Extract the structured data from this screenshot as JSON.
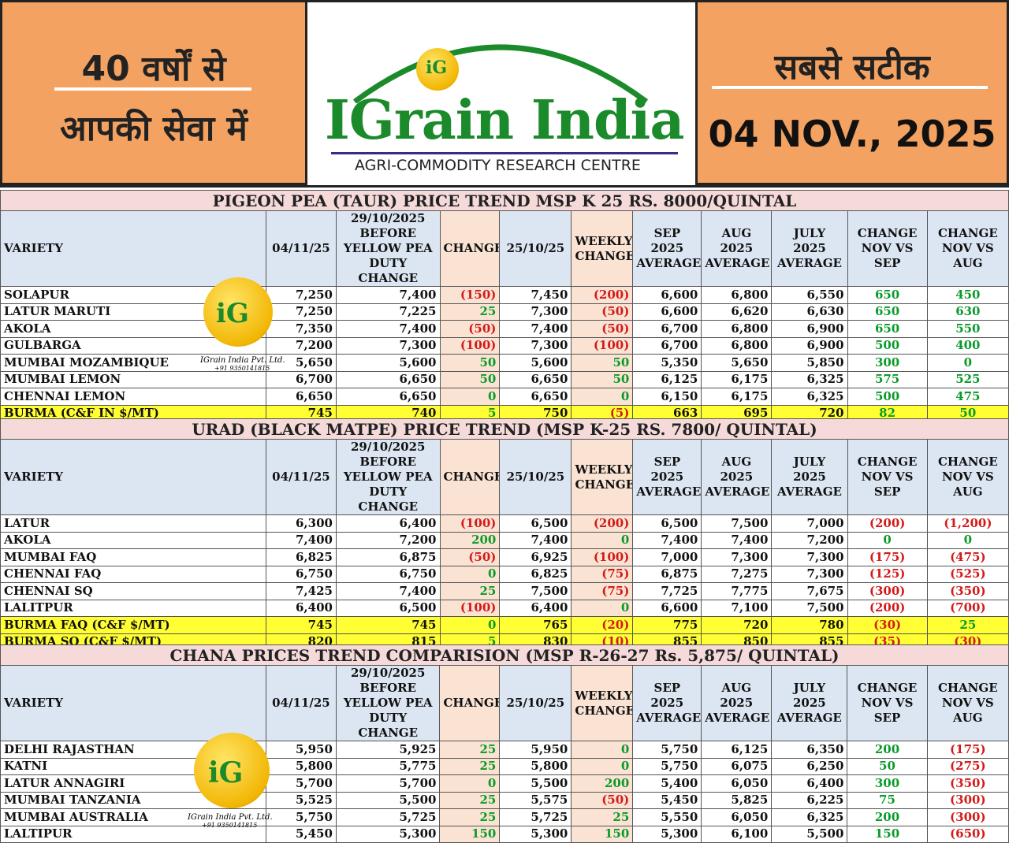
{
  "banner": {
    "left_line1": "40 वर्षों से",
    "left_line2": "आपकी सेवा में",
    "right_line1": "सबसे सटीक",
    "date": "04 NOV., 2025",
    "brand": "IGrain India",
    "tagline": "AGRI-COMMODITY RESEARCH CENTRE",
    "logo_text": "iG",
    "watermark_company": "IGrain India Pvt. Ltd.",
    "watermark_phone": "+91 9350141815"
  },
  "columns": [
    "VARIETY",
    "04/11/25",
    "29/10/2025 BEFORE YELLOW PEA DUTY CHANGE",
    "CHANGE",
    "25/10/25",
    "WEEKLY CHANGE",
    "SEP 2025 AVERAGE",
    "AUG 2025 AVERAGE",
    "JULY 2025 AVERAGE",
    "CHANGE NOV VS SEP",
    "CHANGE NOV VS AUG"
  ],
  "sections": [
    {
      "title": "PIGEON PEA (TAUR) PRICE TREND MSP K 25 RS. 8000/QUINTAL",
      "rows": [
        {
          "name": "SOLAPUR",
          "v": [
            "7,250",
            "7,400",
            "(150)",
            "7,450",
            "(200)",
            "6,600",
            "6,800",
            "6,550",
            "650",
            "450"
          ],
          "hl": false
        },
        {
          "name": "LATUR MARUTI",
          "v": [
            "7,250",
            "7,225",
            "25",
            "7,300",
            "(50)",
            "6,600",
            "6,620",
            "6,630",
            "650",
            "630"
          ],
          "hl": false
        },
        {
          "name": "AKOLA",
          "v": [
            "7,350",
            "7,400",
            "(50)",
            "7,400",
            "(50)",
            "6,700",
            "6,800",
            "6,900",
            "650",
            "550"
          ],
          "hl": false
        },
        {
          "name": "GULBARGA",
          "v": [
            "7,200",
            "7,300",
            "(100)",
            "7,300",
            "(100)",
            "6,700",
            "6,800",
            "6,900",
            "500",
            "400"
          ],
          "hl": false
        },
        {
          "name": "MUMBAI MOZAMBIQUE",
          "v": [
            "5,650",
            "5,600",
            "50",
            "5,600",
            "50",
            "5,350",
            "5,650",
            "5,850",
            "300",
            "0"
          ],
          "hl": false
        },
        {
          "name": "MUMBAI LEMON",
          "v": [
            "6,700",
            "6,650",
            "50",
            "6,650",
            "50",
            "6,125",
            "6,175",
            "6,325",
            "575",
            "525"
          ],
          "hl": false
        },
        {
          "name": "CHENNAI LEMON",
          "v": [
            "6,650",
            "6,650",
            "0",
            "6,650",
            "0",
            "6,150",
            "6,175",
            "6,325",
            "500",
            "475"
          ],
          "hl": false
        },
        {
          "name": "BURMA (C&F IN $/MT)",
          "v": [
            "745",
            "740",
            "5",
            "750",
            "(5)",
            "663",
            "695",
            "720",
            "82",
            "50"
          ],
          "hl": true
        }
      ]
    },
    {
      "title": "URAD (BLACK MATPE) PRICE TREND (MSP K-25 RS. 7800/ QUINTAL)",
      "rows": [
        {
          "name": "LATUR",
          "v": [
            "6,300",
            "6,400",
            "(100)",
            "6,500",
            "(200)",
            "6,500",
            "7,500",
            "7,000",
            "(200)",
            "(1,200)"
          ],
          "hl": false
        },
        {
          "name": "AKOLA",
          "v": [
            "7,400",
            "7,200",
            "200",
            "7,400",
            "0",
            "7,400",
            "7,400",
            "7,200",
            "0",
            "0"
          ],
          "hl": false
        },
        {
          "name": "MUMBAI FAQ",
          "v": [
            "6,825",
            "6,875",
            "(50)",
            "6,925",
            "(100)",
            "7,000",
            "7,300",
            "7,300",
            "(175)",
            "(475)"
          ],
          "hl": false
        },
        {
          "name": "CHENNAI FAQ",
          "v": [
            "6,750",
            "6,750",
            "0",
            "6,825",
            "(75)",
            "6,875",
            "7,275",
            "7,300",
            "(125)",
            "(525)"
          ],
          "hl": false
        },
        {
          "name": "CHENNAI SQ",
          "v": [
            "7,425",
            "7,400",
            "25",
            "7,500",
            "(75)",
            "7,725",
            "7,775",
            "7,675",
            "(300)",
            "(350)"
          ],
          "hl": false
        },
        {
          "name": "LALITPUR",
          "v": [
            "6,400",
            "6,500",
            "(100)",
            "6,400",
            "0",
            "6,600",
            "7,100",
            "7,500",
            "(200)",
            "(700)"
          ],
          "hl": false
        },
        {
          "name": "BURMA FAQ (C&F $/MT)",
          "v": [
            "745",
            "745",
            "0",
            "765",
            "(20)",
            "775",
            "720",
            "780",
            "(30)",
            "25"
          ],
          "hl": true
        },
        {
          "name": "BURMA SQ (C&F $/MT)",
          "v": [
            "820",
            "815",
            "5",
            "830",
            "(10)",
            "855",
            "850",
            "855",
            "(35)",
            "(30)"
          ],
          "hl": true
        }
      ]
    },
    {
      "title": "CHANA PRICES TREND COMPARISION (MSP R-26-27 Rs. 5,875/ QUINTAL)",
      "rows": [
        {
          "name": "DELHI RAJASTHAN",
          "v": [
            "5,950",
            "5,925",
            "25",
            "5,950",
            "0",
            "5,750",
            "6,125",
            "6,350",
            "200",
            "(175)"
          ],
          "hl": false
        },
        {
          "name": "KATNI",
          "v": [
            "5,800",
            "5,775",
            "25",
            "5,800",
            "0",
            "5,750",
            "6,075",
            "6,250",
            "50",
            "(275)"
          ],
          "hl": false
        },
        {
          "name": "LATUR ANNAGIRI",
          "v": [
            "5,700",
            "5,700",
            "0",
            "5,500",
            "200",
            "5,400",
            "6,050",
            "6,400",
            "300",
            "(350)"
          ],
          "hl": false
        },
        {
          "name": "MUMBAI TANZANIA",
          "v": [
            "5,525",
            "5,500",
            "25",
            "5,575",
            "(50)",
            "5,450",
            "5,825",
            "6,225",
            "75",
            "(300)"
          ],
          "hl": false
        },
        {
          "name": "MUMBAI AUSTRALIA",
          "v": [
            "5,750",
            "5,725",
            "25",
            "5,725",
            "25",
            "5,550",
            "6,050",
            "6,325",
            "200",
            "(300)"
          ],
          "hl": false
        },
        {
          "name": "LALTIPUR",
          "v": [
            "5,450",
            "5,300",
            "150",
            "5,300",
            "150",
            "5,300",
            "6,100",
            "5,500",
            "150",
            "(650)"
          ],
          "hl": false
        }
      ]
    }
  ]
}
